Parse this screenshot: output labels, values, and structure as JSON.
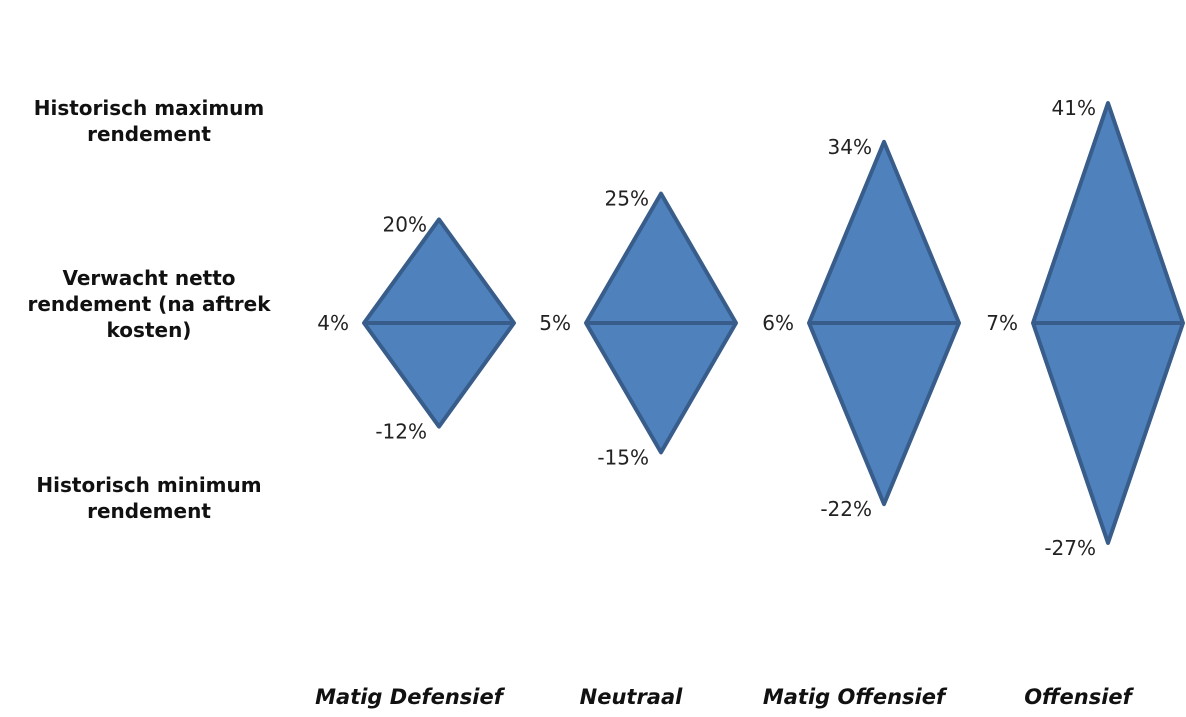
{
  "chart_data": {
    "type": "diamond-range",
    "row_labels": {
      "max": "Historisch maximum\nrendement",
      "expected": "Verwacht netto\nrendement (na aftrek\nkosten)",
      "min": "Historisch minimum\nrendement"
    },
    "series": [
      {
        "category": "Matig Defensief",
        "max": 20,
        "expected": 4,
        "min": -12,
        "max_label": "20%",
        "expected_label": "4%",
        "min_label": "-12%"
      },
      {
        "category": "Neutraal",
        "max": 25,
        "expected": 5,
        "min": -15,
        "max_label": "25%",
        "expected_label": "5%",
        "min_label": "-15%"
      },
      {
        "category": "Matig Offensief",
        "max": 34,
        "expected": 6,
        "min": -22,
        "max_label": "34%",
        "expected_label": "6%",
        "min_label": "-22%"
      },
      {
        "category": "Offensief",
        "max": 41,
        "expected": 7,
        "min": -27,
        "max_label": "41%",
        "expected_label": "7%",
        "min_label": "-27%"
      }
    ],
    "colors": {
      "fill": "#4f81bd",
      "stroke": "#385d8a"
    }
  }
}
